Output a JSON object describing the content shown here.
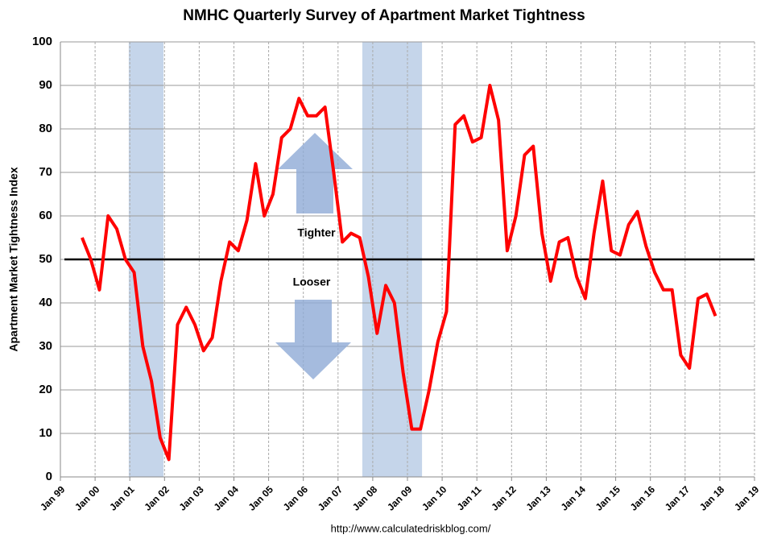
{
  "chart_data": {
    "type": "line",
    "title": "NMHC Quarterly Survey of Apartment Market Tightness",
    "y_label": "Apartment Market Tightness Index",
    "source": "http://www.calculatedriskblog.com/",
    "annotations": [
      "Tighter",
      "Looser"
    ],
    "reference_line": 50,
    "shaded_ranges": [
      [
        2000.97,
        2001.97
      ],
      [
        2007.7,
        2009.42
      ]
    ],
    "x": [
      1999.625,
      1999.875,
      2000.125,
      2000.375,
      2000.625,
      2000.875,
      2001.125,
      2001.375,
      2001.625,
      2001.875,
      2002.125,
      2002.375,
      2002.625,
      2002.875,
      2003.125,
      2003.375,
      2003.625,
      2003.875,
      2004.125,
      2004.375,
      2004.625,
      2004.875,
      2005.125,
      2005.375,
      2005.625,
      2005.875,
      2006.125,
      2006.375,
      2006.625,
      2006.875,
      2007.125,
      2007.375,
      2007.625,
      2007.875,
      2008.125,
      2008.375,
      2008.625,
      2008.875,
      2009.125,
      2009.375,
      2009.625,
      2009.875,
      2010.125,
      2010.375,
      2010.625,
      2010.875,
      2011.125,
      2011.375,
      2011.625,
      2011.875,
      2012.125,
      2012.375,
      2012.625,
      2012.875,
      2013.125,
      2013.375,
      2013.625,
      2013.875,
      2014.125,
      2014.375,
      2014.625,
      2014.875,
      2015.125,
      2015.375,
      2015.625,
      2015.875,
      2016.125,
      2016.375,
      2016.625,
      2016.875,
      2017.125,
      2017.375,
      2017.625,
      2017.875
    ],
    "series": [
      {
        "name": "Apartment Market Tightness Index",
        "color": "#ff0000",
        "values": [
          55,
          50,
          43,
          60,
          57,
          50,
          47,
          30,
          22,
          9,
          4,
          35,
          39,
          35,
          29,
          32,
          45,
          54,
          52,
          59,
          72,
          60,
          65,
          78,
          80,
          87,
          83,
          83,
          85,
          70,
          54,
          56,
          55,
          46,
          33,
          44,
          40,
          24,
          11,
          11,
          20,
          31,
          38,
          81,
          83,
          77,
          78,
          90,
          82,
          52,
          60,
          74,
          76,
          56,
          45,
          54,
          55,
          46,
          41,
          56,
          68,
          52,
          51,
          58,
          61,
          53,
          47,
          43,
          43,
          28,
          25,
          41,
          42,
          37
        ]
      }
    ],
    "xlim": [
      1999,
      2019
    ],
    "xticks": [
      {
        "value": 1999,
        "label": "Jan 99"
      },
      {
        "value": 2000,
        "label": "Jan 00"
      },
      {
        "value": 2001,
        "label": "Jan 01"
      },
      {
        "value": 2002,
        "label": "Jan 02"
      },
      {
        "value": 2003,
        "label": "Jan 03"
      },
      {
        "value": 2004,
        "label": "Jan 04"
      },
      {
        "value": 2005,
        "label": "Jan 05"
      },
      {
        "value": 2006,
        "label": "Jan 06"
      },
      {
        "value": 2007,
        "label": "Jan 07"
      },
      {
        "value": 2008,
        "label": "Jan 08"
      },
      {
        "value": 2009,
        "label": "Jan 09"
      },
      {
        "value": 2010,
        "label": "Jan 10"
      },
      {
        "value": 2011,
        "label": "Jan 11"
      },
      {
        "value": 2012,
        "label": "Jan 12"
      },
      {
        "value": 2013,
        "label": "Jan 13"
      },
      {
        "value": 2014,
        "label": "Jan 14"
      },
      {
        "value": 2015,
        "label": "Jan 15"
      },
      {
        "value": 2016,
        "label": "Jan 16"
      },
      {
        "value": 2017,
        "label": "Jan 17"
      },
      {
        "value": 2018,
        "label": "Jan 18"
      },
      {
        "value": 2019,
        "label": "Jan 19"
      }
    ],
    "ylim": [
      0,
      100
    ],
    "yticks": [
      0,
      10,
      20,
      30,
      40,
      50,
      60,
      70,
      80,
      90,
      100
    ],
    "grid": true,
    "shade_color": "#c5d5ea"
  }
}
